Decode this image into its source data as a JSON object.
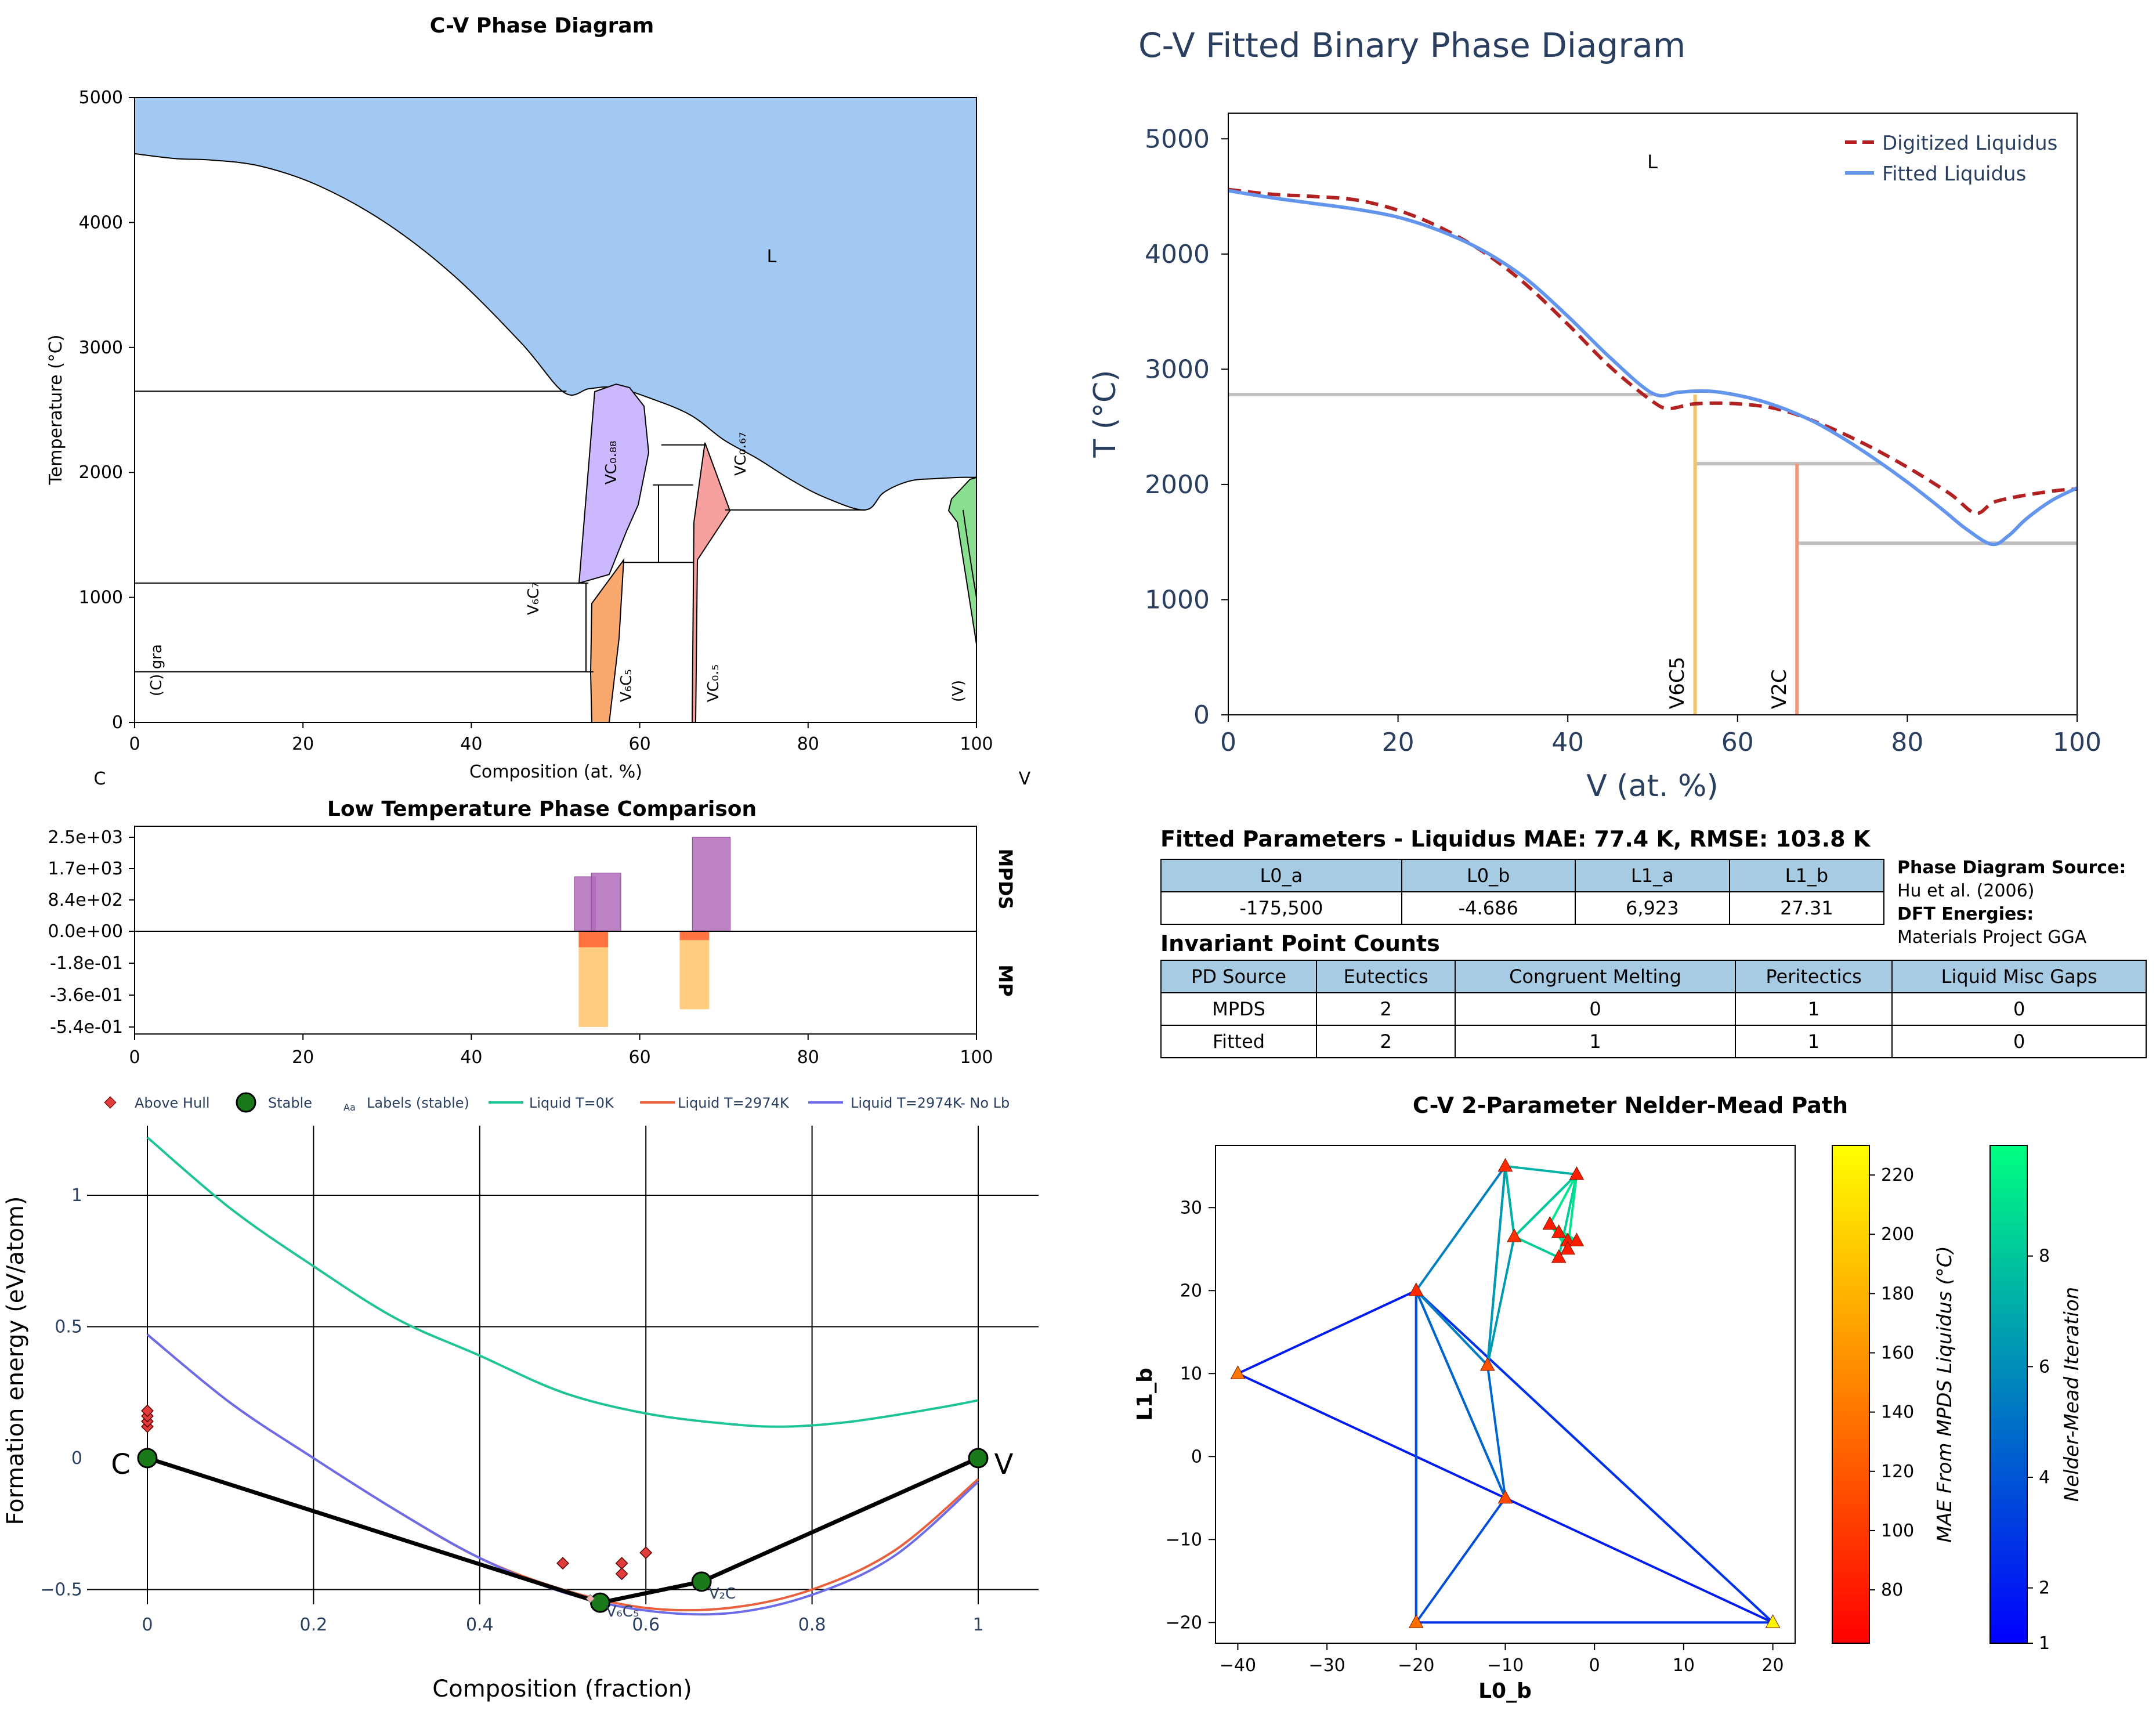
{
  "figure": {
    "phase_diagram": {
      "title": "C-V Phase Diagram",
      "xlabel": "Composition (at. %)",
      "ylabel": "Temperature (°C)",
      "left_element": "C",
      "right_element": "V",
      "xticks": [
        "0",
        "20",
        "40",
        "60",
        "80",
        "100"
      ],
      "yticks": [
        "0",
        "1000",
        "2000",
        "3000",
        "4000",
        "5000"
      ],
      "labels": {
        "liquid": "L",
        "vc088": "VC₀.₈₈",
        "vc067": "VC₀.₆₇",
        "v6c7": "V₆C₇",
        "v6c5": "V₆C₅",
        "vc05": "VC₀.₅",
        "cgra": "(C) gra",
        "vv": "(V)"
      },
      "colors": {
        "liquid": "#a2c9f4",
        "vc088": "#cbb8ff",
        "v6c5": "#f9a86e",
        "vc05": "#f7a0a0",
        "bcc": "#88df8f"
      }
    },
    "low_temp": {
      "title": "Low Temperature Phase Comparison",
      "label_top": "MPDS",
      "label_bottom": "MP",
      "yticks": [
        "2.5e+03",
        "1.7e+03",
        "8.4e+02",
        "0.0e+00",
        "-1.8e-01",
        "-3.6e-01",
        "-5.4e-01"
      ],
      "xticks": [
        "0",
        "20",
        "40",
        "60",
        "80",
        "100"
      ]
    },
    "hull": {
      "xlabel": "Composition (fraction)",
      "ylabel": "Formation energy (eV/atom)",
      "xticks": [
        "0",
        "0.2",
        "0.4",
        "0.6",
        "0.8",
        "1"
      ],
      "yticks": [
        "1",
        "0.5",
        "0",
        "−0.5"
      ],
      "legend": [
        "Above Hull",
        "Stable",
        "Labels (stable)",
        "Liquid T=0K",
        "Liquid T=2974K",
        "Liquid T=2974K- No Lb"
      ],
      "legend_aa": "Aa",
      "end_left": "C",
      "end_right": "V",
      "labels": {
        "v6c5": "V₆C₅",
        "v2c": "V₂C"
      }
    },
    "fitted": {
      "title": "C-V Fitted Binary Phase Diagram",
      "xlabel": "V (at. %)",
      "ylabel": "T (°C)",
      "xticks": [
        "0",
        "20",
        "40",
        "60",
        "80",
        "100"
      ],
      "yticks": [
        "0",
        "1000",
        "2000",
        "3000",
        "4000",
        "5000"
      ],
      "legend": [
        "Digitized Liquidus",
        "Fitted Liquidus"
      ],
      "liquid_label": "L",
      "phase_labels": [
        "V6C5",
        "V2C"
      ]
    },
    "nelder": {
      "title": "C-V 2-Parameter Nelder-Mead Path",
      "xlabel": "L0_b",
      "ylabel": "L1_b",
      "xticks": [
        "−40",
        "−30",
        "−20",
        "−10",
        "0",
        "10",
        "20"
      ],
      "yticks": [
        "−20",
        "−10",
        "0",
        "10",
        "20",
        "30"
      ],
      "cbar1_label": "MAE From MPDS Liquidus (°C)",
      "cbar1_ticks": [
        "80",
        "100",
        "120",
        "140",
        "160",
        "180",
        "200",
        "220"
      ],
      "cbar2_label": "Nelder-Mead Iteration",
      "cbar2_ticks": [
        "1",
        "2",
        "4",
        "6",
        "8"
      ]
    }
  },
  "params": {
    "title": "Fitted Parameters - Liquidus MAE: 77.4 K, RMSE: 103.8 K",
    "headers": [
      "L0_a",
      "L0_b",
      "L1_a",
      "L1_b"
    ],
    "values": [
      "-175,500",
      "-4.686",
      "6,923",
      "27.31"
    ]
  },
  "source": {
    "pd_label": "Phase Diagram Source:",
    "pd_value": "Hu et al. (2006)",
    "dft_label": "DFT Energies:",
    "dft_value": "Materials Project GGA"
  },
  "invariants": {
    "title": "Invariant Point Counts",
    "headers": [
      "PD Source",
      "Eutectics",
      "Congruent Melting",
      "Peritectics",
      "Liquid Misc Gaps"
    ],
    "rows": [
      [
        "MPDS",
        "2",
        "0",
        "1",
        "0"
      ],
      [
        "Fitted",
        "2",
        "1",
        "1",
        "0"
      ]
    ]
  },
  "chart_data": [
    {
      "type": "area",
      "title": "C-V Phase Diagram",
      "xlabel": "Composition (at. %)",
      "ylabel": "Temperature (°C)",
      "xlim": [
        0,
        100
      ],
      "ylim": [
        0,
        5000
      ],
      "liquidus": {
        "x": [
          0,
          5,
          9,
          15,
          22,
          30,
          38,
          46,
          51,
          54,
          57,
          61,
          66,
          70,
          74,
          78,
          82,
          86.8,
          89,
          92,
          95,
          98,
          100
        ],
        "y": [
          4550,
          4510,
          4500,
          4450,
          4290,
          3990,
          3570,
          3030,
          2640,
          2670,
          2680,
          2600,
          2460,
          2260,
          2110,
          1940,
          1800,
          1700,
          1840,
          1930,
          1950,
          1960,
          1960
        ]
      },
      "isotherms": [
        2650,
        1115,
        405,
        2220,
        1900,
        1700,
        1280
      ],
      "phases": [
        "L",
        "VC0.88",
        "VC0.67",
        "V6C7",
        "V6C5",
        "VC0.5",
        "(C) gra",
        "(V)"
      ]
    },
    {
      "type": "bar",
      "title": "Low Temperature Phase Comparison",
      "series": [
        {
          "name": "MPDS",
          "x": [
            53.5,
            56,
            68.5
          ],
          "width": [
            2.5,
            3.5,
            4.5
          ],
          "values": [
            1450,
            1550,
            2500
          ]
        },
        {
          "name": "MP",
          "x": [
            54.5,
            66.5
          ],
          "values_dark": [
            -0.09,
            -0.05
          ],
          "values_light": [
            -0.54,
            -0.44
          ]
        }
      ],
      "xlim": [
        0,
        100
      ]
    },
    {
      "type": "scatter",
      "xlabel": "Composition (fraction)",
      "ylabel": "Formation energy (eV/atom)",
      "xlim": [
        -0.05,
        1.07
      ],
      "ylim": [
        -0.58,
        1.26
      ],
      "stable": {
        "x": [
          0,
          0.545,
          0.667,
          1
        ],
        "y": [
          0,
          -0.55,
          -0.47,
          0
        ]
      },
      "above_hull": {
        "x": [
          0,
          0,
          0,
          0,
          0.5,
          0.571,
          0.571,
          0.6
        ],
        "y": [
          0.12,
          0.14,
          0.16,
          0.18,
          -0.4,
          -0.4,
          -0.44,
          -0.36
        ]
      },
      "series": [
        {
          "name": "Liquid T=0K",
          "x": [
            0,
            0.1,
            0.2,
            0.3,
            0.4,
            0.5,
            0.6,
            0.7,
            0.77,
            0.85,
            0.95,
            1
          ],
          "y": [
            1.22,
            0.95,
            0.73,
            0.53,
            0.39,
            0.25,
            0.17,
            0.13,
            0.12,
            0.14,
            0.19,
            0.22
          ]
        },
        {
          "name": "Liquid T=2974K",
          "x": [
            0,
            0.1,
            0.2,
            0.3,
            0.4,
            0.5,
            0.6,
            0.7,
            0.8,
            0.9,
            1
          ],
          "y": [
            0.47,
            0.21,
            0.0,
            -0.2,
            -0.38,
            -0.5,
            -0.57,
            -0.57,
            -0.5,
            -0.35,
            -0.08
          ]
        },
        {
          "name": "Liquid T=2974K- No Lb",
          "x": [
            0,
            0.1,
            0.2,
            0.3,
            0.4,
            0.5,
            0.6,
            0.7,
            0.8,
            0.9,
            1
          ],
          "y": [
            0.47,
            0.21,
            0.0,
            -0.2,
            -0.38,
            -0.51,
            -0.58,
            -0.59,
            -0.52,
            -0.37,
            -0.09
          ]
        }
      ]
    },
    {
      "type": "line",
      "title": "C-V Fitted Binary Phase Diagram",
      "xlabel": "V (at. %)",
      "ylabel": "T (°C)",
      "xlim": [
        0,
        100
      ],
      "ylim": [
        0,
        5500
      ],
      "series": [
        {
          "name": "Digitized Liquidus",
          "x": [
            0,
            5,
            10,
            15,
            20,
            25,
            30,
            35,
            40,
            45,
            50,
            52,
            55,
            60,
            65,
            70,
            75,
            80,
            85,
            88,
            90,
            92,
            95,
            98,
            100
          ],
          "y": [
            4560,
            4520,
            4500,
            4470,
            4380,
            4230,
            4020,
            3740,
            3390,
            3020,
            2720,
            2660,
            2700,
            2700,
            2650,
            2520,
            2350,
            2150,
            1920,
            1750,
            1840,
            1880,
            1920,
            1950,
            1960
          ]
        },
        {
          "name": "Fitted Liquidus",
          "x": [
            0,
            5,
            10,
            15,
            20,
            25,
            30,
            35,
            40,
            45,
            50,
            53,
            55,
            58,
            63,
            68,
            72,
            76,
            80,
            84,
            87,
            90,
            92,
            94,
            97,
            100
          ],
          "y": [
            4550,
            4490,
            4440,
            4390,
            4320,
            4200,
            4030,
            3790,
            3460,
            3100,
            2790,
            2800,
            2810,
            2800,
            2720,
            2580,
            2420,
            2230,
            2020,
            1790,
            1610,
            1480,
            1560,
            1700,
            1860,
            1970
          ]
        }
      ],
      "lines": {
        "x": [
          [
            0,
            50
          ],
          [
            55,
            77
          ],
          [
            67,
            100
          ]
        ],
        "y": [
          2780,
          2180,
          1490
        ]
      },
      "compounds": [
        {
          "name": "V6C5",
          "x": 55.0
        },
        {
          "name": "V2C",
          "x": 67.0
        }
      ]
    },
    {
      "type": "line",
      "title": "C-V 2-Parameter Nelder-Mead Path",
      "xlabel": "L0_b",
      "ylabel": "L1_b",
      "xlim": [
        -42.5,
        22.5
      ],
      "ylim": [
        -22.5,
        37.5
      ],
      "points": {
        "x": [
          -40,
          -20,
          20,
          -10,
          -20,
          -12,
          -10,
          -2,
          -9,
          -5,
          -3,
          -2,
          -4,
          -3,
          -4
        ],
        "y": [
          10,
          20,
          -20,
          -5,
          -20,
          11,
          35,
          34,
          26.5,
          28,
          26,
          26,
          24,
          25,
          27
        ],
        "mae": [
          140,
          90,
          225,
          110,
          135,
          115,
          90,
          80,
          95,
          80,
          80,
          80,
          80,
          80,
          80
        ]
      },
      "triangles": [
        {
          "x": [
            -40,
            -20,
            20
          ],
          "y": [
            10,
            20,
            -20
          ],
          "iter": 1
        },
        {
          "x": [
            -20,
            -20,
            20
          ],
          "y": [
            20,
            -20,
            -20
          ],
          "iter": 2
        },
        {
          "x": [
            -20,
            -10,
            -20
          ],
          "y": [
            20,
            -5,
            -20
          ],
          "iter": 3
        },
        {
          "x": [
            -20,
            -12,
            -10
          ],
          "y": [
            20,
            11,
            -5
          ],
          "iter": 4
        },
        {
          "x": [
            -20,
            -10,
            -12
          ],
          "y": [
            20,
            35,
            11
          ],
          "iter": 5
        },
        {
          "x": [
            -10,
            -9,
            -12
          ],
          "y": [
            35,
            26.5,
            11
          ],
          "iter": 6
        },
        {
          "x": [
            -10,
            -2,
            -9
          ],
          "y": [
            35,
            34,
            26.5
          ],
          "iter": 7
        },
        {
          "x": [
            -2,
            -4,
            -9
          ],
          "y": [
            34,
            24,
            26.5
          ],
          "iter": 8
        },
        {
          "x": [
            -2,
            -3,
            -5
          ],
          "y": [
            34,
            25,
            28
          ],
          "iter": 9
        },
        {
          "x": [
            -5,
            -2,
            -4
          ],
          "y": [
            28,
            26,
            27
          ],
          "iter": 9
        }
      ],
      "color_ranges": {
        "mae": [
          62,
          230
        ],
        "iter": [
          1,
          10
        ]
      }
    }
  ]
}
